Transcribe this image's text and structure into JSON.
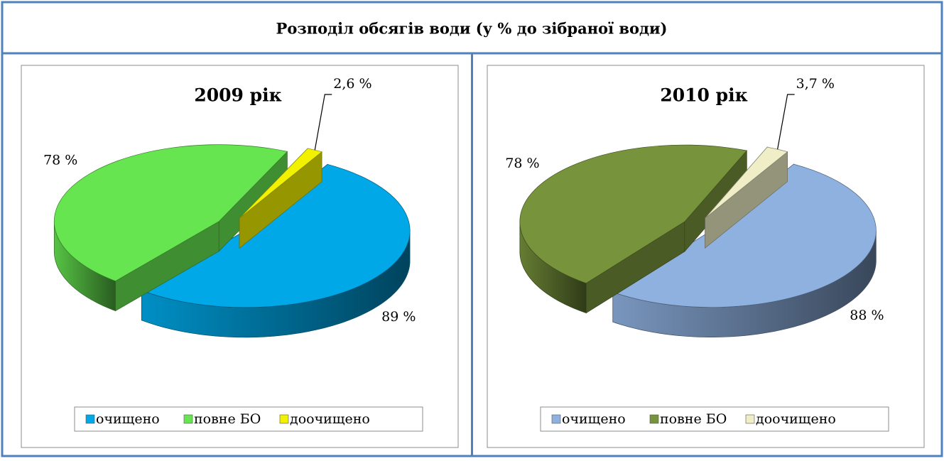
{
  "title": "Розподіл обсягів води (у % до зібраної води)",
  "chart_data": [
    {
      "type": "pie",
      "title": "2009 рік",
      "categories": [
        "очищено",
        "повне БО",
        "доочищено"
      ],
      "values": [
        89,
        78,
        2.6
      ],
      "value_labels": [
        "89 %",
        "78 %",
        "2,6 %"
      ],
      "colors": [
        "#00a8e8",
        "#66e550",
        "#f2f200"
      ]
    },
    {
      "type": "pie",
      "title": "2010 рік",
      "categories": [
        "очищено",
        "повне БО",
        "доочищено"
      ],
      "values": [
        88,
        78,
        3.7
      ],
      "value_labels": [
        "88 %",
        "78 %",
        "3,7 %"
      ],
      "colors": [
        "#8eb1e0",
        "#77933c",
        "#efeec6"
      ]
    }
  ]
}
